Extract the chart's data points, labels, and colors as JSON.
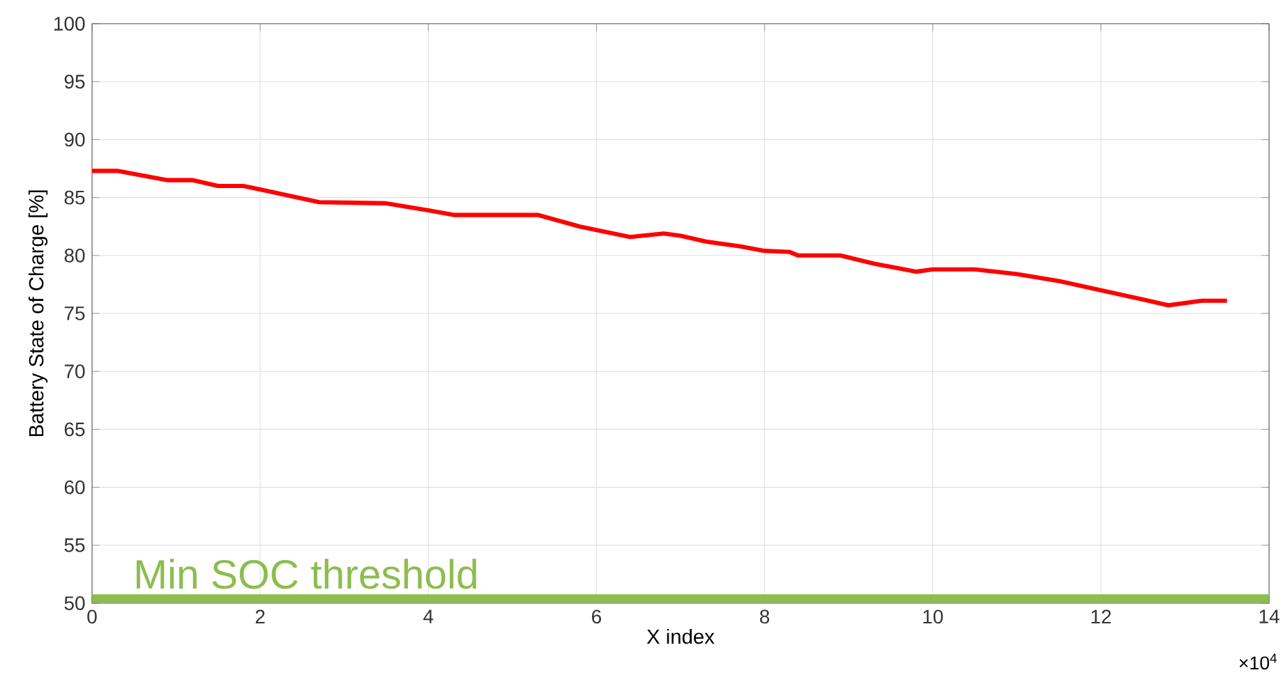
{
  "chart_data": {
    "type": "line",
    "xlabel": "X index",
    "ylabel": "Battery State of Charge [%]",
    "x": [
      0,
      0.3,
      0.9,
      1.2,
      1.5,
      1.8,
      2.0,
      2.7,
      3.5,
      4.0,
      4.3,
      4.6,
      5.3,
      5.8,
      6.4,
      6.8,
      7.0,
      7.3,
      7.7,
      8.0,
      8.3,
      8.4,
      8.9,
      9.3,
      9.8,
      10.0,
      10.5,
      11.0,
      11.5,
      12.0,
      12.5,
      12.8,
      13.2,
      13.5
    ],
    "series": [
      {
        "color": "#ff0000",
        "values": [
          87.3,
          87.3,
          86.5,
          86.5,
          86.0,
          86.0,
          85.7,
          84.6,
          84.5,
          83.9,
          83.5,
          83.5,
          83.5,
          82.5,
          81.6,
          81.9,
          81.7,
          81.2,
          80.8,
          80.4,
          80.3,
          80.0,
          80.0,
          79.3,
          78.6,
          78.8,
          78.8,
          78.4,
          77.8,
          77.0,
          76.2,
          75.7,
          76.1,
          76.1
        ]
      }
    ],
    "xlim": [
      0,
      14
    ],
    "ylim": [
      50,
      100
    ],
    "xticks": [
      0,
      2,
      4,
      6,
      8,
      10,
      12,
      14
    ],
    "yticks": [
      50,
      55,
      60,
      65,
      70,
      75,
      80,
      85,
      90,
      95,
      100
    ],
    "grid": true,
    "ref_lines": [
      {
        "axis": "y",
        "value": 50.4,
        "label": "Min SOC threshold",
        "color": "#8cbd4e"
      }
    ],
    "annotations": [
      "×10$^{4}$"
    ]
  }
}
